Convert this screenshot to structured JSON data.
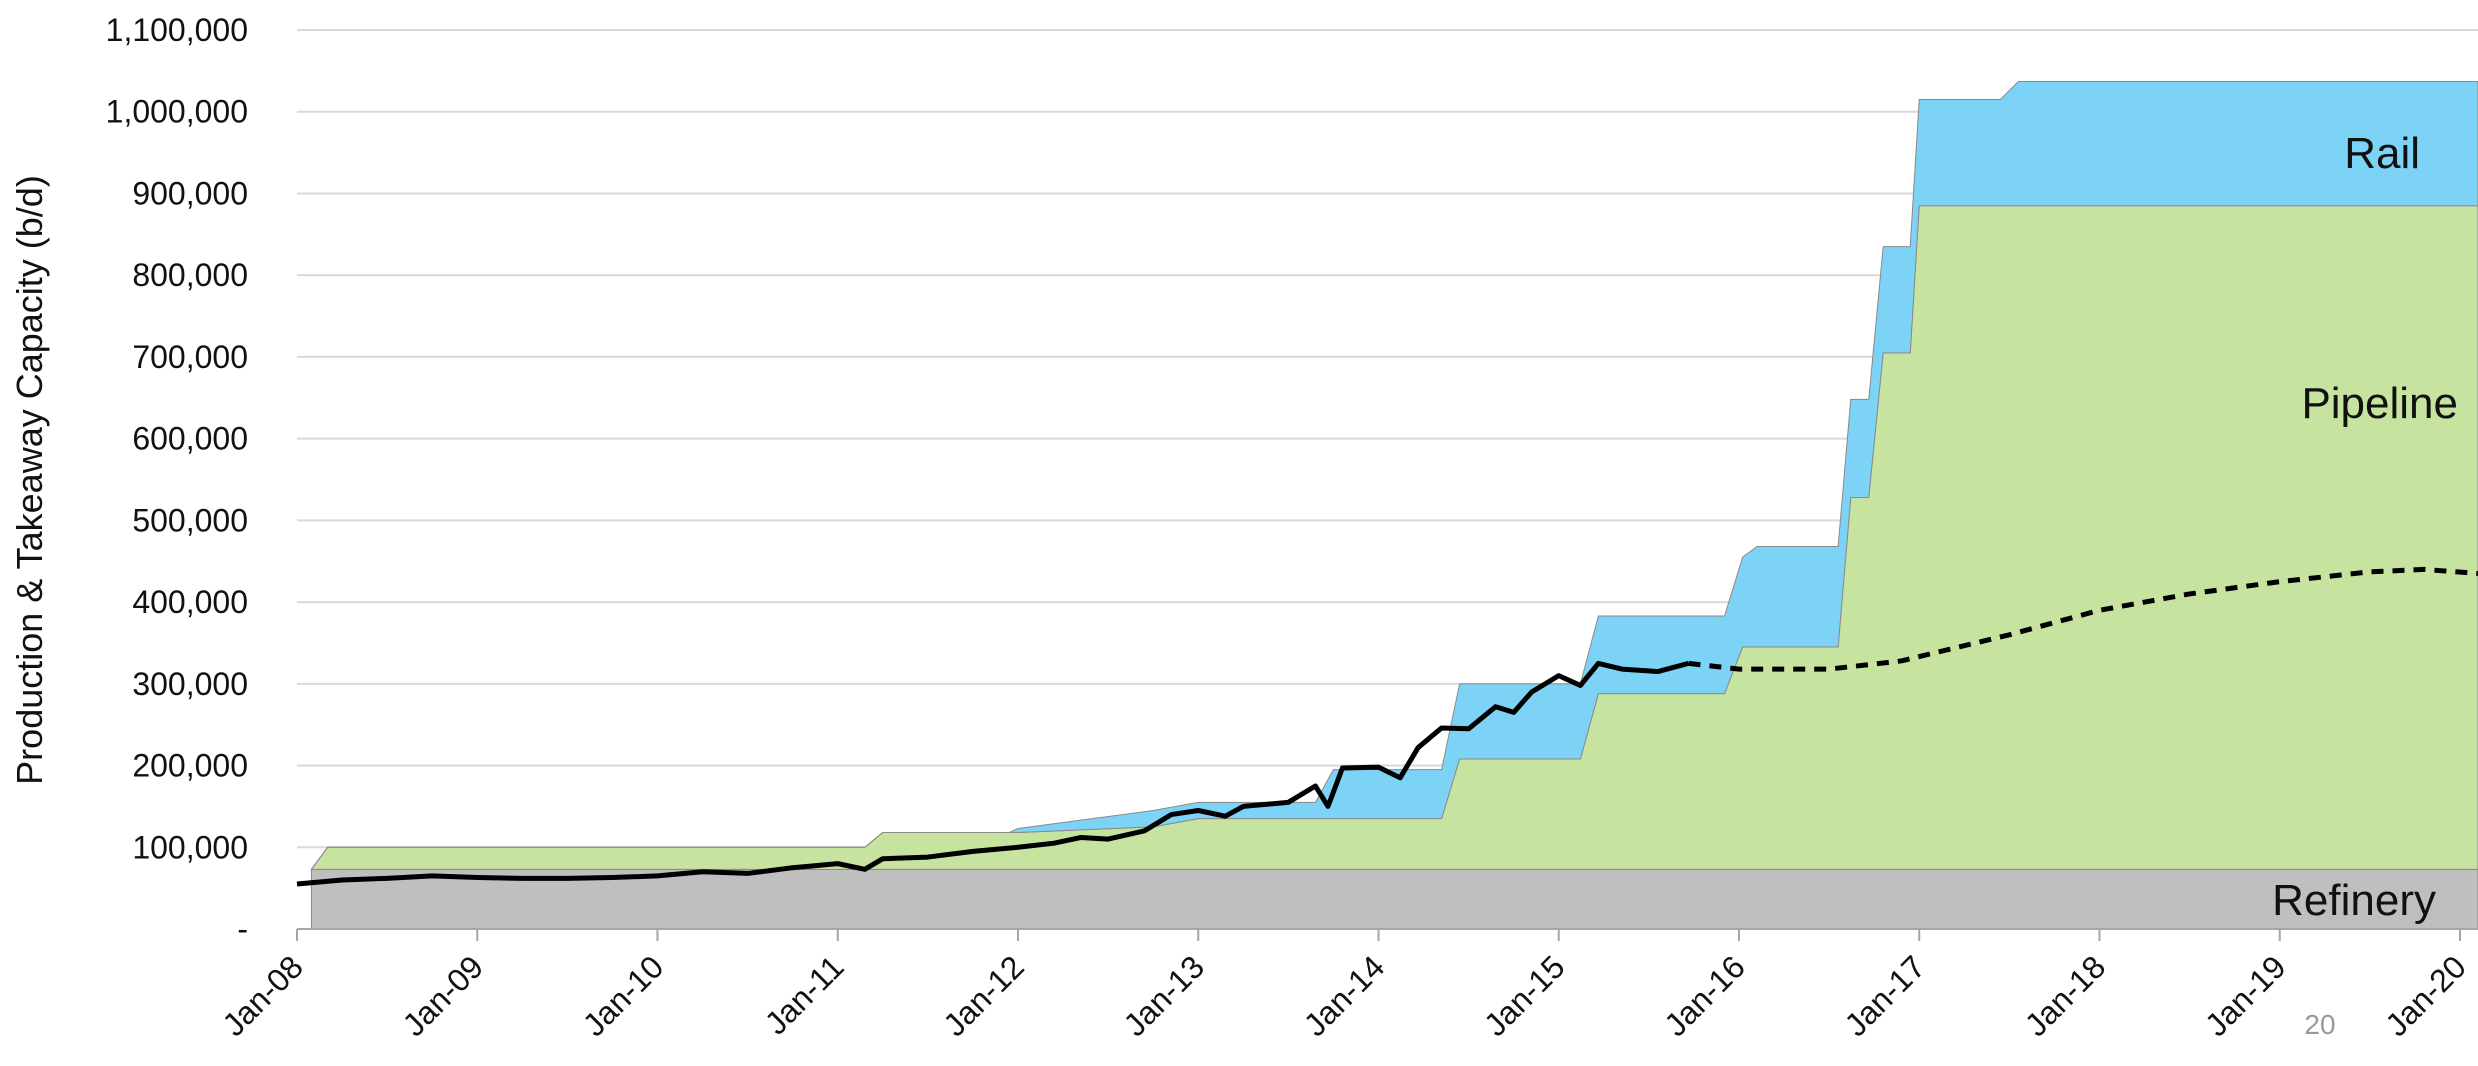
{
  "chart_data": {
    "type": "stacked-area",
    "y_label": "Production & Takeaway Capacity (b/d)",
    "annotation": "20",
    "xlim": [
      2008,
      2020.1
    ],
    "xticks": [
      {
        "value": 2008,
        "label": "Jan-08"
      },
      {
        "value": 2009,
        "label": "Jan-09"
      },
      {
        "value": 2010,
        "label": "Jan-10"
      },
      {
        "value": 2011,
        "label": "Jan-11"
      },
      {
        "value": 2012,
        "label": "Jan-12"
      },
      {
        "value": 2013,
        "label": "Jan-13"
      },
      {
        "value": 2014,
        "label": "Jan-14"
      },
      {
        "value": 2015,
        "label": "Jan-15"
      },
      {
        "value": 2016,
        "label": "Jan-16"
      },
      {
        "value": 2017,
        "label": "Jan-17"
      },
      {
        "value": 2018,
        "label": "Jan-18"
      },
      {
        "value": 2019,
        "label": "Jan-19"
      },
      {
        "value": 2020,
        "label": "Jan-20"
      }
    ],
    "ylim": [
      0,
      1100000
    ],
    "yticks": [
      {
        "value": 0,
        "label": "-"
      },
      {
        "value": 100000,
        "label": "100,000"
      },
      {
        "value": 200000,
        "label": "200,000"
      },
      {
        "value": 300000,
        "label": "300,000"
      },
      {
        "value": 400000,
        "label": "400,000"
      },
      {
        "value": 500000,
        "label": "500,000"
      },
      {
        "value": 600000,
        "label": "600,000"
      },
      {
        "value": 700000,
        "label": "700,000"
      },
      {
        "value": 800000,
        "label": "800,000"
      },
      {
        "value": 900000,
        "label": "900,000"
      },
      {
        "value": 1000000,
        "label": "1,000,000"
      },
      {
        "value": 1100000,
        "label": "1,100,000"
      }
    ],
    "grid": true,
    "x": [
      2008.08,
      2008.17,
      2011.15,
      2011.25,
      2011.95,
      2012.0,
      2012.75,
      2013.0,
      2013.65,
      2013.75,
      2014.35,
      2014.45,
      2015.12,
      2015.22,
      2015.92,
      2016.02,
      2016.1,
      2016.55,
      2016.62,
      2016.72,
      2016.8,
      2016.95,
      2017.0,
      2017.45,
      2017.55,
      2020.1
    ],
    "series": [
      {
        "name": "Refinery",
        "color": "#bfbfbf",
        "values": [
          73000,
          73000,
          73000,
          73000,
          73000,
          73000,
          73000,
          73000,
          73000,
          73000,
          73000,
          73000,
          73000,
          73000,
          73000,
          73000,
          73000,
          73000,
          73000,
          73000,
          73000,
          73000,
          73000,
          73000,
          73000,
          73000
        ]
      },
      {
        "name": "Pipeline",
        "color": "#c6e3a0",
        "values": [
          0,
          27000,
          27000,
          45000,
          45000,
          45000,
          52000,
          62000,
          62000,
          62000,
          62000,
          135000,
          135000,
          215000,
          215000,
          272000,
          272000,
          272000,
          455000,
          455000,
          632000,
          632000,
          812000,
          812000,
          812000,
          812000
        ]
      },
      {
        "name": "Rail",
        "color": "#7dd3f5",
        "values": [
          0,
          0,
          0,
          0,
          0,
          5000,
          20000,
          20000,
          20000,
          60000,
          60000,
          92000,
          92000,
          95000,
          95000,
          110000,
          123000,
          123000,
          120000,
          120000,
          130000,
          130000,
          130000,
          130000,
          152000,
          152000
        ]
      }
    ],
    "line_series": [
      {
        "color": "#000000",
        "dashed": false,
        "x": [
          2008.0,
          2008.25,
          2008.5,
          2008.75,
          2009.0,
          2009.25,
          2009.5,
          2009.75,
          2010.0,
          2010.25,
          2010.5,
          2010.75,
          2011.0,
          2011.15,
          2011.25,
          2011.5,
          2011.75,
          2012.0,
          2012.2,
          2012.35,
          2012.5,
          2012.7,
          2012.85,
          2013.0,
          2013.15,
          2013.25,
          2013.5,
          2013.65,
          2013.72,
          2013.8,
          2014.0,
          2014.12,
          2014.22,
          2014.35,
          2014.5,
          2014.65,
          2014.75,
          2014.85,
          2015.0,
          2015.12,
          2015.22,
          2015.35,
          2015.55,
          2015.72
        ],
        "values": [
          55000,
          60000,
          62000,
          65000,
          63000,
          62000,
          62000,
          63000,
          65000,
          70000,
          68000,
          75000,
          80000,
          73000,
          86000,
          88000,
          95000,
          100000,
          105000,
          112000,
          110000,
          120000,
          140000,
          145000,
          138000,
          150000,
          155000,
          175000,
          150000,
          197000,
          198000,
          185000,
          222000,
          246000,
          245000,
          272000,
          265000,
          290000,
          310000,
          298000,
          325000,
          318000,
          315000,
          325000
        ]
      },
      {
        "color": "#000000",
        "dashed": true,
        "x": [
          2015.72,
          2016.0,
          2016.5,
          2016.9,
          2017.5,
          2018.0,
          2018.5,
          2019.0,
          2019.5,
          2019.8,
          2020.1
        ],
        "values": [
          325000,
          318000,
          318000,
          328000,
          360000,
          390000,
          410000,
          425000,
          437000,
          440000,
          435000
        ]
      }
    ]
  }
}
